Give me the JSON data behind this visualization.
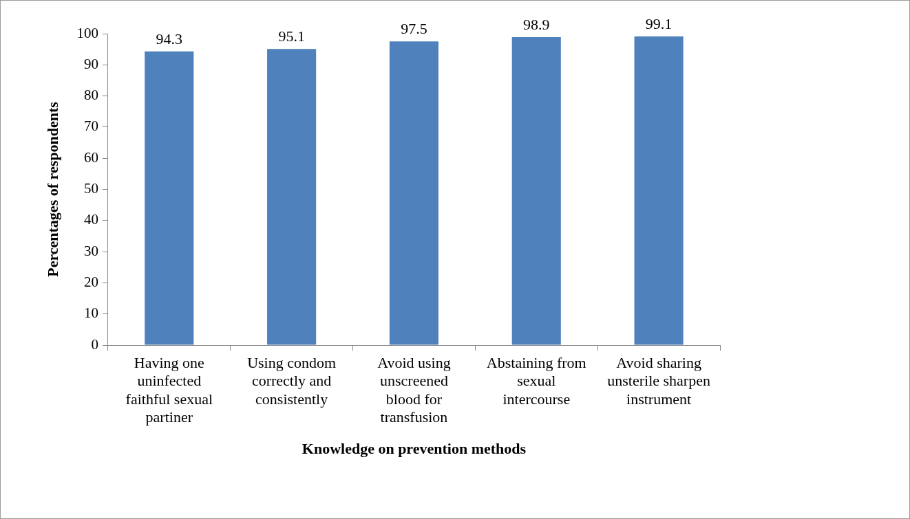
{
  "chart_data": {
    "type": "bar",
    "xlabel": "Knowledge on prevention methods",
    "ylabel": "Percentages of respondents",
    "categories": [
      "Having one uninfected faithful sexual partiner",
      "Using condom correctly and consistently",
      "Avoid using unscreened blood for transfusion",
      "Abstaining from sexual intercourse",
      "Avoid sharing unsterile sharpen instrument"
    ],
    "values": [
      94.3,
      95.1,
      97.5,
      98.9,
      99.1
    ],
    "color": "#4f81bd",
    "data_labels": true,
    "ylim": [
      0,
      100
    ],
    "yticks": [
      0,
      10,
      20,
      30,
      40,
      50,
      60,
      70,
      80,
      90,
      100
    ],
    "grid": false,
    "legend": false
  }
}
